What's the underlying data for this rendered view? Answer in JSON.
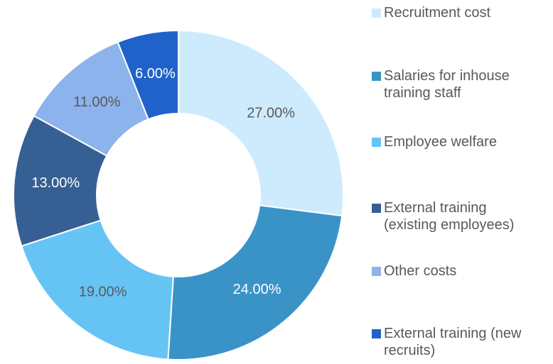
{
  "chart_data": {
    "type": "donut",
    "categories": [
      "Recruitment cost",
      "Salaries for inhouse training staff",
      "Employee welfare",
      "External training (existing employees)",
      "Other costs",
      "External training (new recruits)"
    ],
    "values": [
      27,
      24,
      19,
      13,
      11,
      6
    ],
    "value_labels": [
      "27.00%",
      "24.00%",
      "19.00%",
      "13.00%",
      "11.00%",
      "6.00%"
    ],
    "colors": [
      "#cdebfd",
      "#3a93c7",
      "#66c4f5",
      "#365f93",
      "#8db3ec",
      "#1f62c9"
    ],
    "legend": "right"
  }
}
